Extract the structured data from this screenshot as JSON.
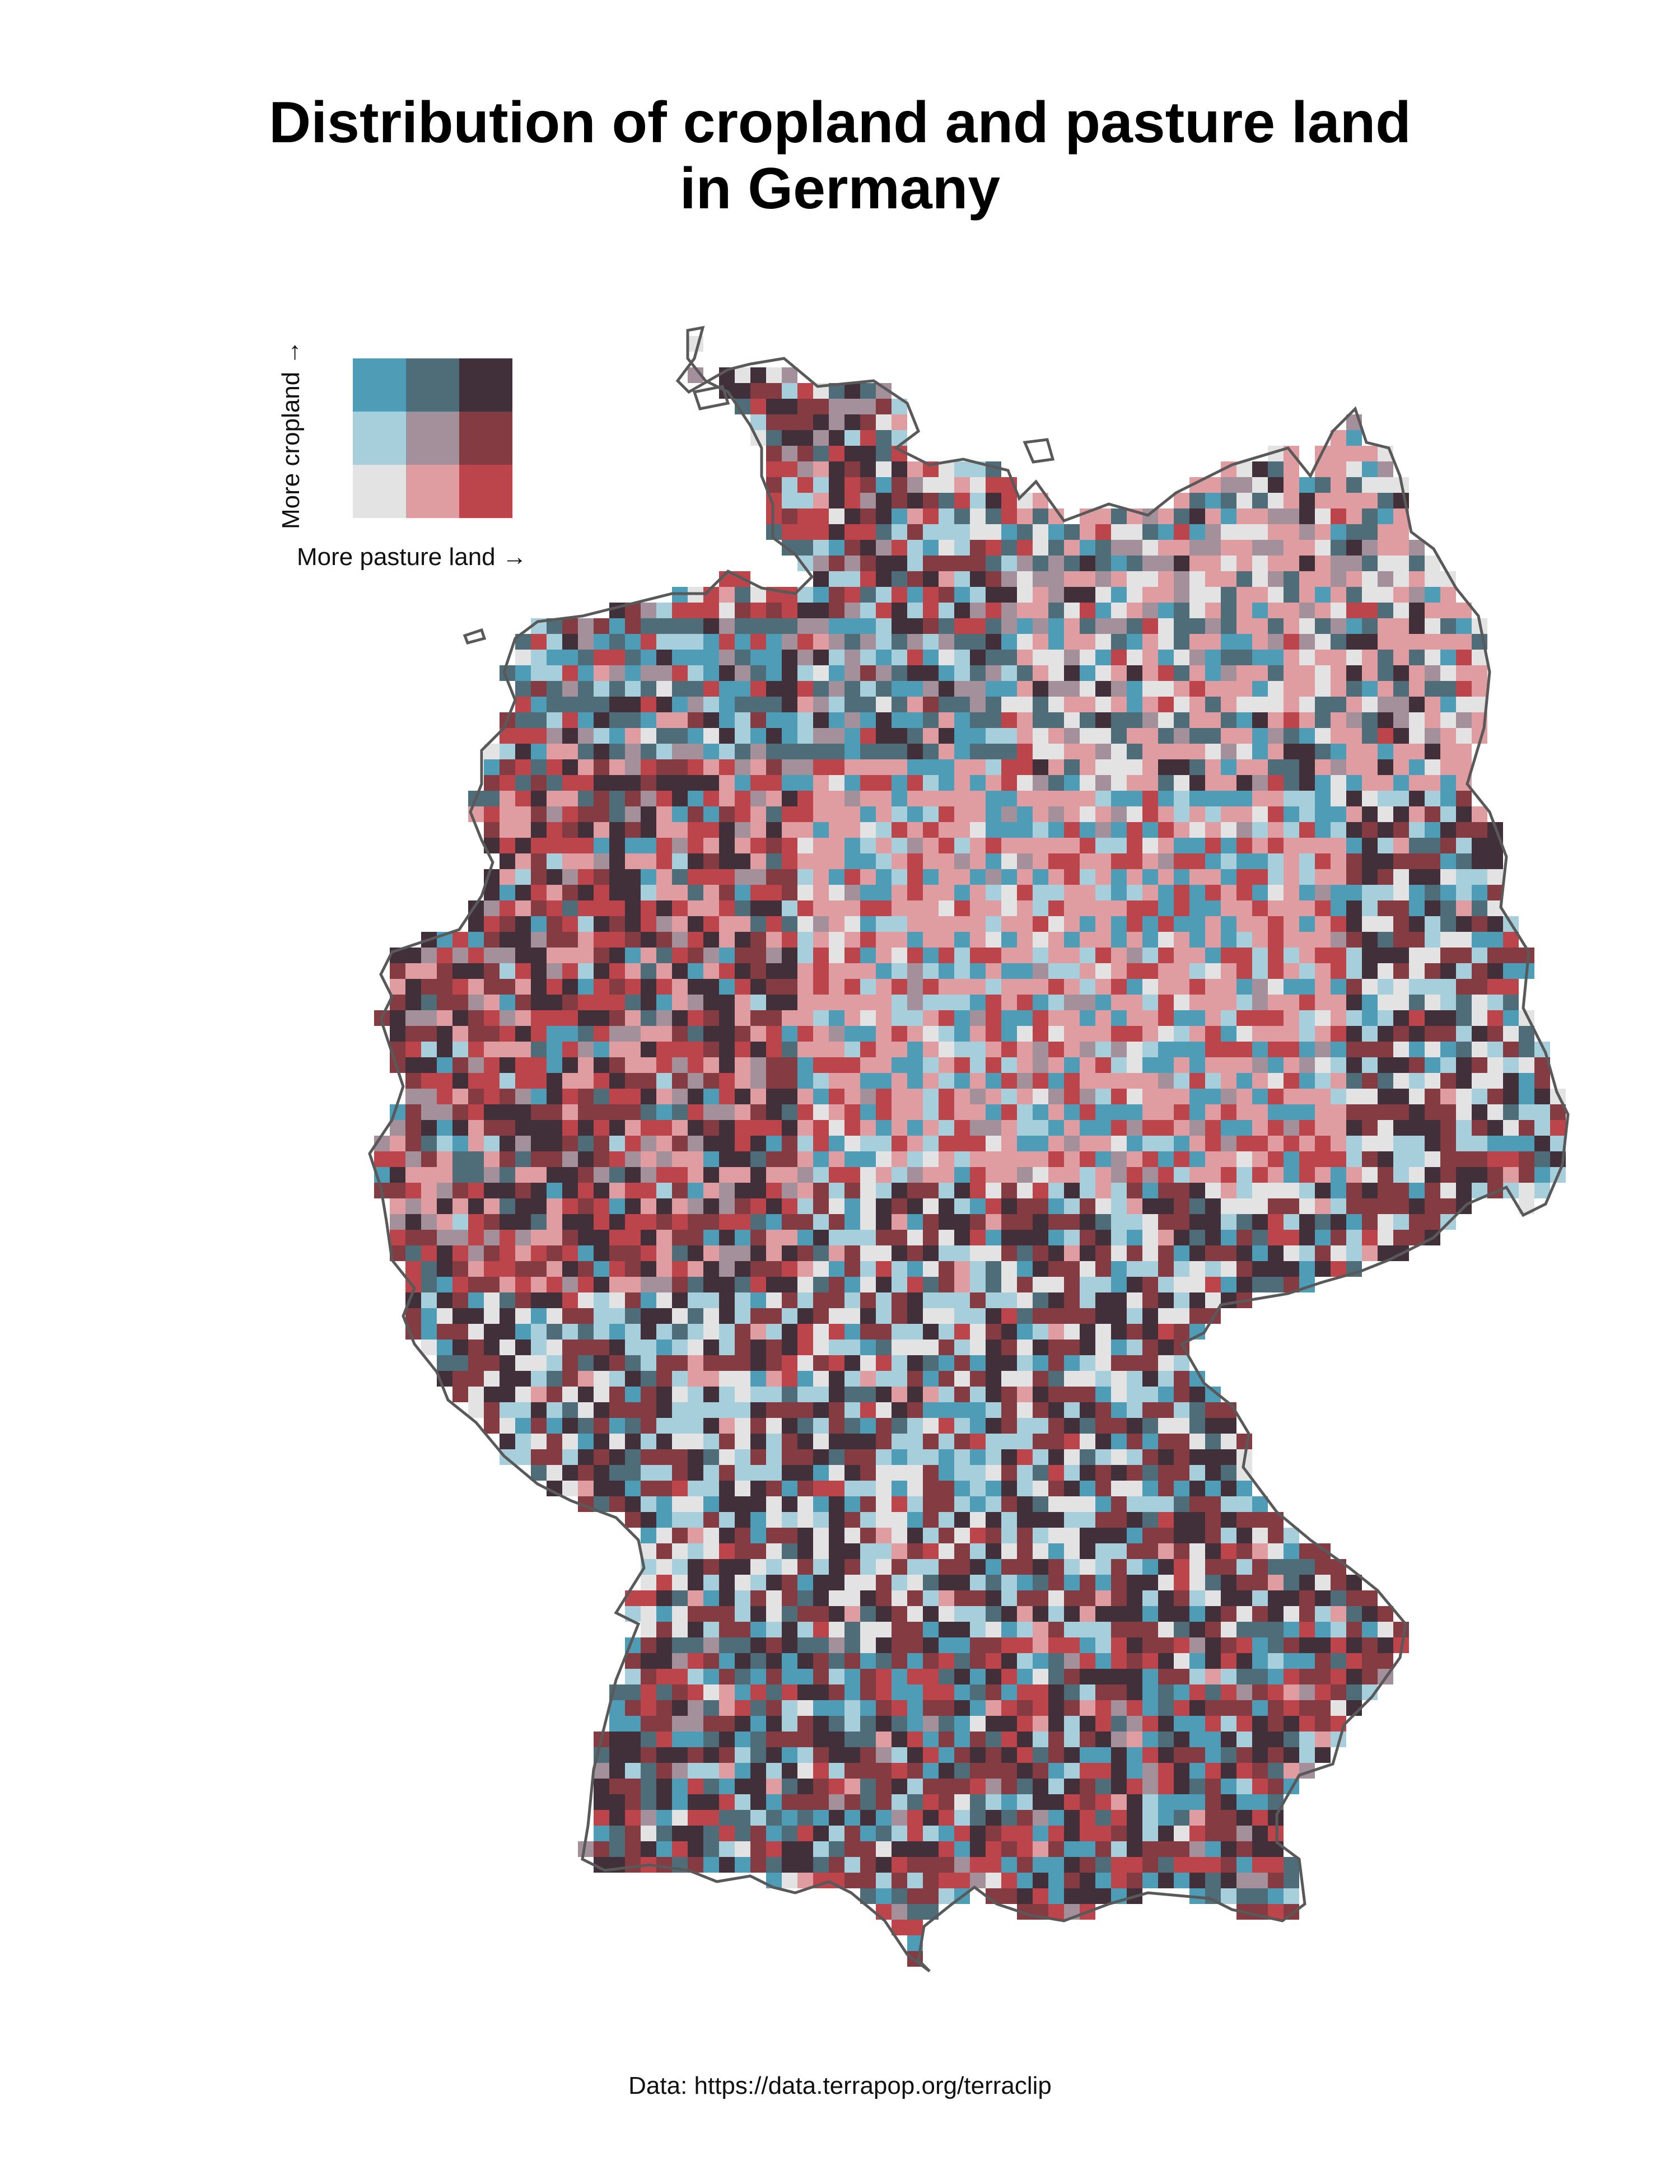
{
  "title": {
    "line1": "Distribution of cropland and pasture land",
    "line2": "in Germany"
  },
  "legend": {
    "y_label": "More cropland →",
    "x_label": "More pasture land →",
    "rows": [
      [
        "#4e9cb5",
        "#4f6c79",
        "#412f39"
      ],
      [
        "#a6cfdb",
        "#a3909b",
        "#843b42"
      ],
      [
        "#e3e3e3",
        "#df9da2",
        "#bc444b"
      ]
    ]
  },
  "map": {
    "outline_color": "#595959",
    "fill_seed": 20231,
    "region_palette_keys": [
      "northwest-pasture",
      "north-coast-mixed",
      "east-cropland",
      "central-cropland",
      "west-pasture",
      "south-mixed",
      "alpine-pasture"
    ]
  },
  "caption": "Data: https://data.terrapop.org/terraclip"
}
